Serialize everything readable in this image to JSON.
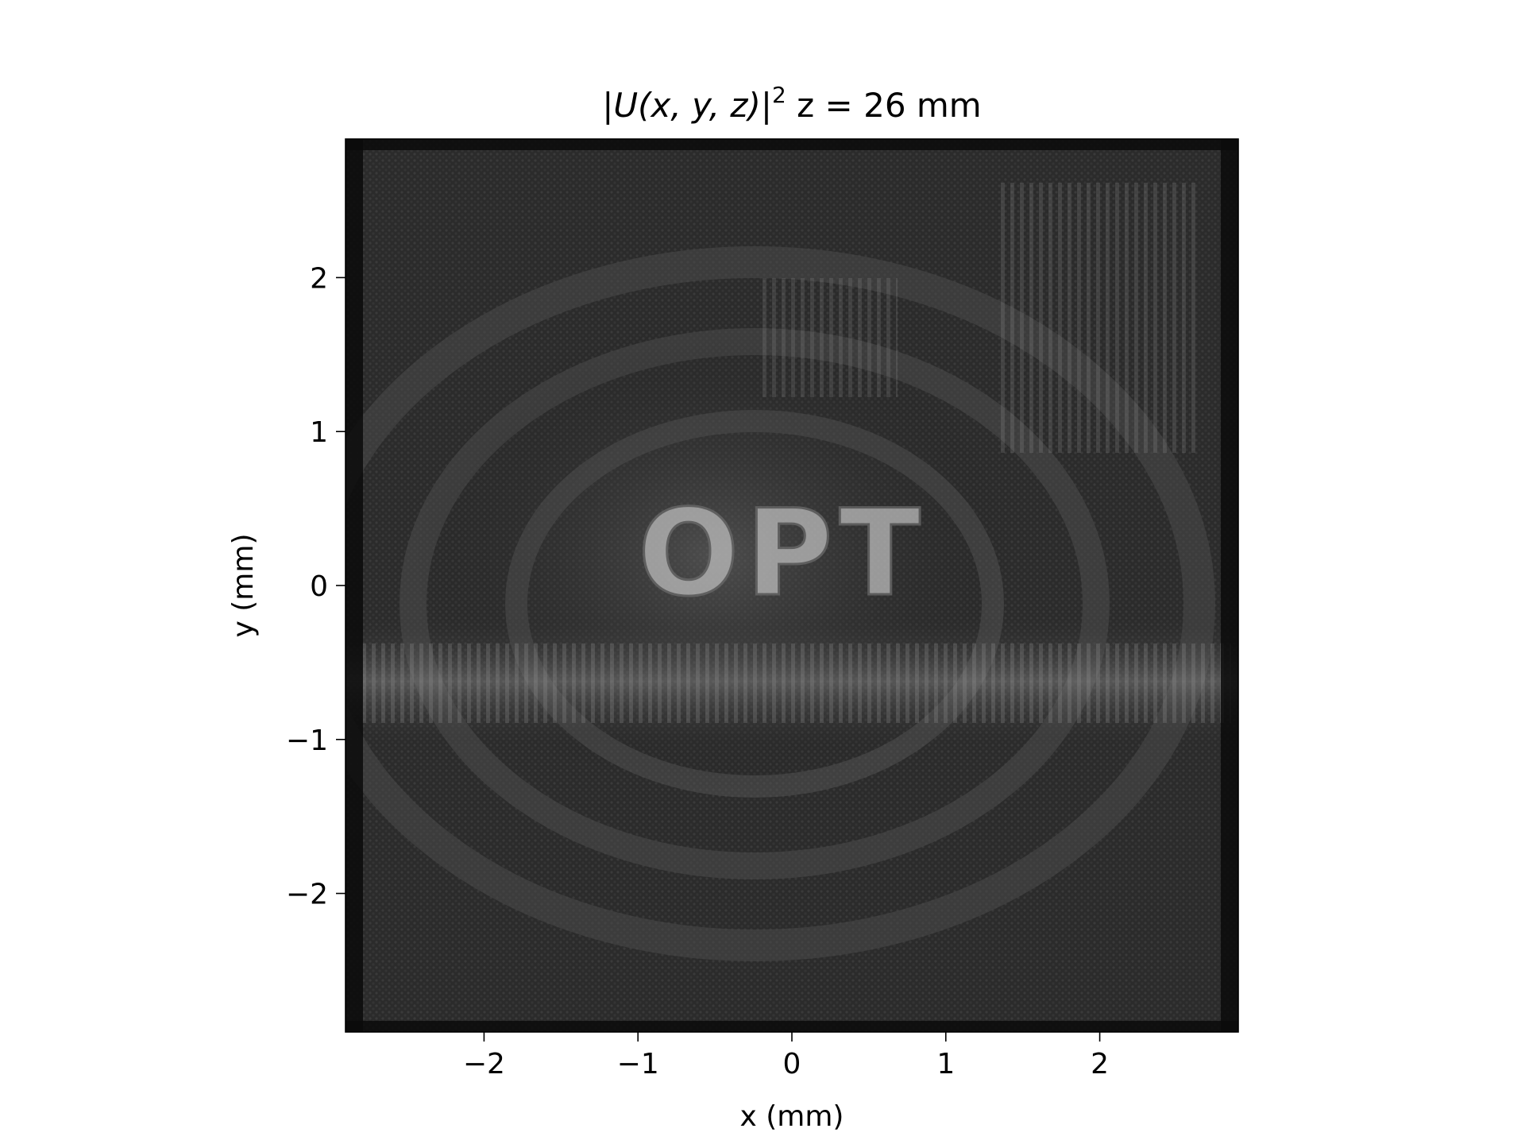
{
  "chart_data": {
    "type": "heatmap",
    "title_main": "|U(x, y, z)|",
    "title_sup": "2",
    "title_rest": " z = 26 mm",
    "xlabel": "x (mm)",
    "ylabel": "y (mm)",
    "xlim": [
      -2.9,
      2.9
    ],
    "ylim": [
      -2.9,
      2.9
    ],
    "xticks": [
      -2,
      -1,
      0,
      1,
      2
    ],
    "yticks": [
      2,
      1,
      0,
      -1,
      -2
    ],
    "xtick_labels": [
      "−2",
      "−1",
      "0",
      "1",
      "2"
    ],
    "ytick_labels": [
      "2",
      "1",
      "0",
      "−1",
      "−2"
    ],
    "colormap": "gray",
    "grid": false,
    "image_text": "OPT",
    "bright_band_y": -0.65
  }
}
